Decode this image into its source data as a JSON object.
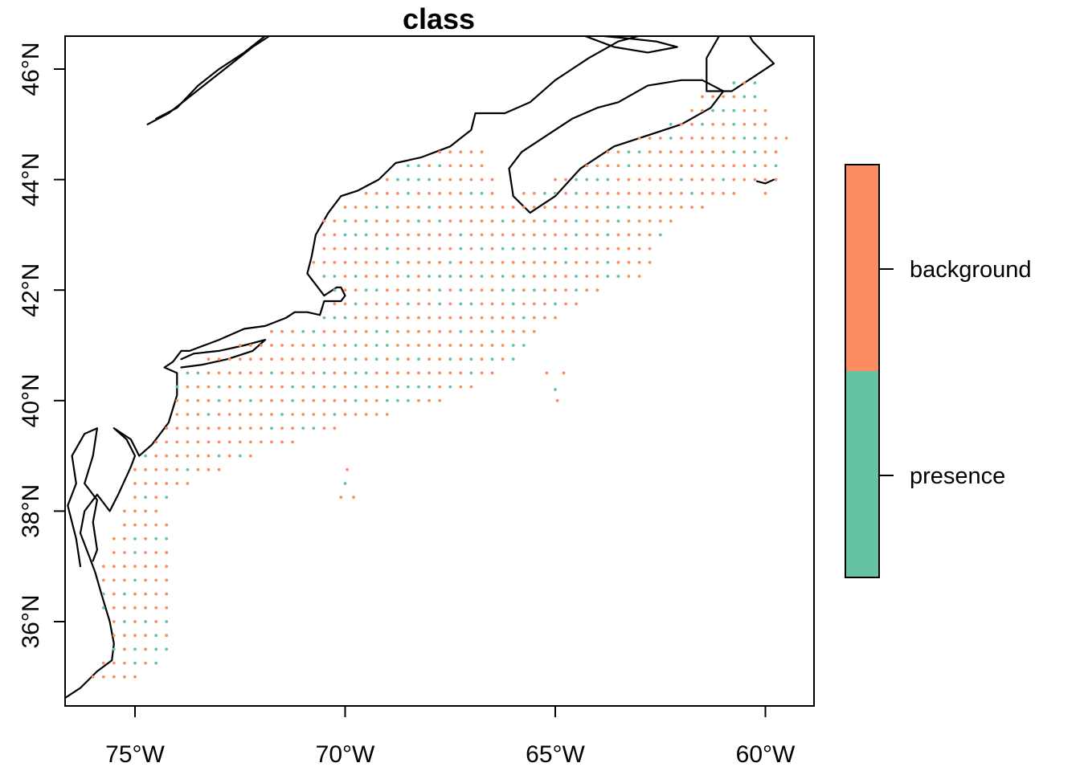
{
  "title": "class",
  "x_ticks": [
    {
      "lon": -75,
      "label": "75°W"
    },
    {
      "lon": -70,
      "label": "70°W"
    },
    {
      "lon": -65,
      "label": "65°W"
    },
    {
      "lon": -60,
      "label": "60°W"
    }
  ],
  "y_ticks": [
    {
      "lat": 36,
      "label": "36°N"
    },
    {
      "lat": 38,
      "label": "38°N"
    },
    {
      "lat": 40,
      "label": "40°N"
    },
    {
      "lat": 42,
      "label": "42°N"
    },
    {
      "lat": 44,
      "label": "44°N"
    },
    {
      "lat": 46,
      "label": "46°N"
    }
  ],
  "legend": {
    "classes": [
      {
        "label": "background",
        "color": "#FC8D62"
      },
      {
        "label": "presence",
        "color": "#66C2A5"
      }
    ]
  },
  "chart_data": {
    "type": "scatter",
    "title": "class",
    "xlim": [
      -76.7,
      -58.9
    ],
    "ylim": [
      34.5,
      46.6
    ],
    "grid_step_deg": 0.25,
    "colors": {
      "background": "#FC8D62",
      "presence": "#66C2A5"
    },
    "note": "sampling points on a regular 0.25 degree grid over the continental shelf; each point classed as background or presence"
  }
}
